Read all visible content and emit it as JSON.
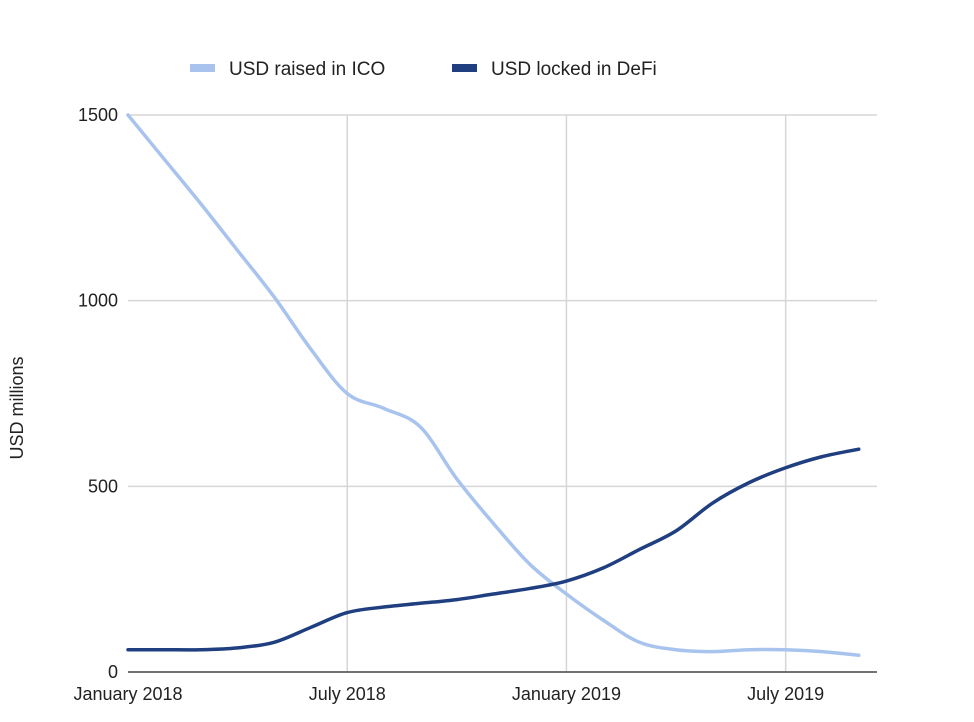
{
  "chart_data": {
    "type": "line",
    "title": "",
    "xlabel": "",
    "ylabel": "USD millions",
    "ylim": [
      0,
      1500
    ],
    "yticks": [
      "0",
      "500",
      "1000",
      "1500"
    ],
    "xtick_labels": [
      "January 2018",
      "July 2018",
      "January 2019",
      "July 2019"
    ],
    "x_unit": "months since January 2018",
    "xlim": [
      0,
      20.5
    ],
    "xticks": [
      0,
      6,
      12,
      18
    ],
    "grid": true,
    "legend_position": "top-center",
    "series": [
      {
        "name": "USD raised in ICO",
        "color": "#a8c4ee",
        "points": [
          [
            0,
            1500
          ],
          [
            1,
            1380
          ],
          [
            2,
            1260
          ],
          [
            3,
            1135
          ],
          [
            4,
            1010
          ],
          [
            5,
            870
          ],
          [
            6,
            750
          ],
          [
            7,
            710
          ],
          [
            8,
            660
          ],
          [
            9,
            520
          ],
          [
            10,
            400
          ],
          [
            11,
            290
          ],
          [
            12,
            210
          ],
          [
            13,
            140
          ],
          [
            14,
            80
          ],
          [
            15,
            60
          ],
          [
            16,
            55
          ],
          [
            17,
            60
          ],
          [
            18,
            60
          ],
          [
            19,
            55
          ],
          [
            20,
            45
          ]
        ]
      },
      {
        "name": "USD locked in DeFi",
        "color": "#1f3f80",
        "points": [
          [
            0,
            60
          ],
          [
            1,
            60
          ],
          [
            2,
            60
          ],
          [
            3,
            65
          ],
          [
            4,
            80
          ],
          [
            5,
            120
          ],
          [
            6,
            160
          ],
          [
            7,
            175
          ],
          [
            8,
            185
          ],
          [
            9,
            195
          ],
          [
            10,
            210
          ],
          [
            11,
            225
          ],
          [
            12,
            245
          ],
          [
            13,
            280
          ],
          [
            14,
            330
          ],
          [
            15,
            380
          ],
          [
            16,
            455
          ],
          [
            17,
            510
          ],
          [
            18,
            550
          ],
          [
            19,
            580
          ],
          [
            20,
            600
          ]
        ]
      }
    ]
  }
}
